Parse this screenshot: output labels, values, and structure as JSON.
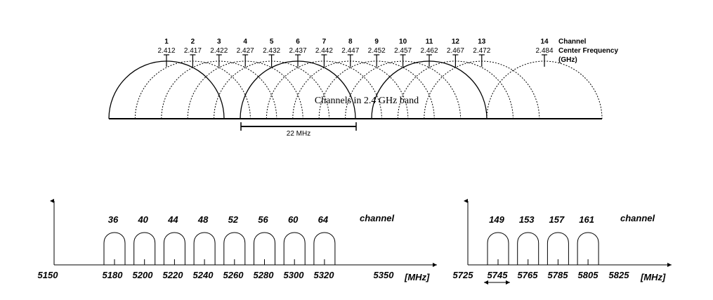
{
  "band24": {
    "title": "Channels in 2.4 GHz band",
    "channels": [
      {
        "num": "1",
        "freq": "2.412"
      },
      {
        "num": "2",
        "freq": "2.417"
      },
      {
        "num": "3",
        "freq": "2.422"
      },
      {
        "num": "4",
        "freq": "2.427"
      },
      {
        "num": "5",
        "freq": "2.432"
      },
      {
        "num": "6",
        "freq": "2.437"
      },
      {
        "num": "7",
        "freq": "2.442"
      },
      {
        "num": "8",
        "freq": "2.447"
      },
      {
        "num": "9",
        "freq": "2.452"
      },
      {
        "num": "10",
        "freq": "2.457"
      },
      {
        "num": "11",
        "freq": "2.462"
      },
      {
        "num": "12",
        "freq": "2.467"
      },
      {
        "num": "13",
        "freq": "2.472"
      },
      {
        "num": "14",
        "freq": "2.484"
      }
    ],
    "solid_channels": [
      "1",
      "6",
      "11"
    ],
    "legend": {
      "line1": "Channel",
      "line2": "Center Frequency",
      "line3": "(GHz)"
    },
    "span_label": "22 MHz"
  },
  "band5_low": {
    "channels": [
      "36",
      "40",
      "44",
      "48",
      "52",
      "56",
      "60",
      "64"
    ],
    "channel_label": "channel",
    "axis_labels": [
      "5150",
      "5180",
      "5200",
      "5220",
      "5240",
      "5260",
      "5280",
      "5300",
      "5320",
      "5350"
    ],
    "unit": "[MHz]"
  },
  "band5_high": {
    "channels": [
      "149",
      "153",
      "157",
      "161"
    ],
    "channel_label": "channel",
    "axis_labels": [
      "5725",
      "5745",
      "5765",
      "5785",
      "5805",
      "5825"
    ],
    "unit": "[MHz]"
  },
  "colors": {
    "ink": "#000000",
    "background": "#ffffff"
  }
}
